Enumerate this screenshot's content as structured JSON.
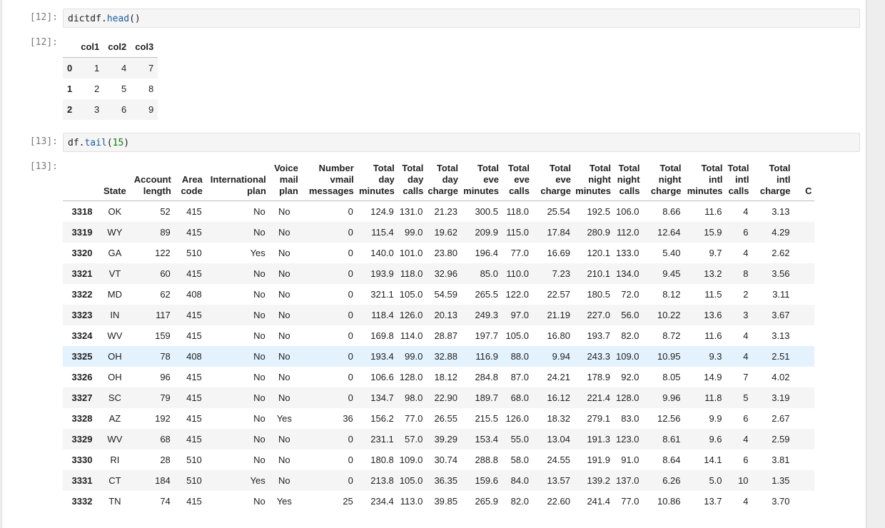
{
  "cell12": {
    "in_prompt": "[12]:",
    "out_prompt": "[12]:",
    "code": {
      "obj": "dictdf.",
      "fn": "head",
      "args": "()"
    },
    "columns": [
      "col1",
      "col2",
      "col3"
    ],
    "rows": [
      {
        "index": "0",
        "values": [
          "1",
          "4",
          "7"
        ]
      },
      {
        "index": "1",
        "values": [
          "2",
          "5",
          "8"
        ]
      },
      {
        "index": "2",
        "values": [
          "3",
          "6",
          "9"
        ]
      }
    ]
  },
  "cell13": {
    "in_prompt": "[13]:",
    "out_prompt": "[13]:",
    "code": {
      "obj": "df.",
      "fn": "tail",
      "open": "(",
      "num": "15",
      "close": ")"
    },
    "columns": [
      [
        "State"
      ],
      [
        "Account",
        "length"
      ],
      [
        "Area",
        "code"
      ],
      [
        "International",
        "plan"
      ],
      [
        "Voice",
        "mail",
        "plan"
      ],
      [
        "Number",
        "vmail",
        "messages"
      ],
      [
        "Total",
        "day",
        "minutes"
      ],
      [
        "Total",
        "day",
        "calls"
      ],
      [
        "Total",
        "day",
        "charge"
      ],
      [
        "Total",
        "eve",
        "minutes"
      ],
      [
        "Total",
        "eve",
        "calls"
      ],
      [
        "Total",
        "eve",
        "charge"
      ],
      [
        "Total",
        "night",
        "minutes"
      ],
      [
        "Total",
        "night",
        "calls"
      ],
      [
        "Total",
        "night",
        "charge"
      ],
      [
        "Total",
        "intl",
        "minutes"
      ],
      [
        "Total",
        "intl",
        "calls"
      ],
      [
        "Total",
        "intl",
        "charge"
      ],
      [
        "C"
      ]
    ],
    "highlighted_row": "3325",
    "rows": [
      {
        "index": "3318",
        "values": [
          "OK",
          "52",
          "415",
          "No",
          "No",
          "0",
          "124.9",
          "131.0",
          "21.23",
          "300.5",
          "118.0",
          "25.54",
          "192.5",
          "106.0",
          "8.66",
          "11.6",
          "4",
          "3.13",
          ""
        ]
      },
      {
        "index": "3319",
        "values": [
          "WY",
          "89",
          "415",
          "No",
          "No",
          "0",
          "115.4",
          "99.0",
          "19.62",
          "209.9",
          "115.0",
          "17.84",
          "280.9",
          "112.0",
          "12.64",
          "15.9",
          "6",
          "4.29",
          ""
        ]
      },
      {
        "index": "3320",
        "values": [
          "GA",
          "122",
          "510",
          "Yes",
          "No",
          "0",
          "140.0",
          "101.0",
          "23.80",
          "196.4",
          "77.0",
          "16.69",
          "120.1",
          "133.0",
          "5.40",
          "9.7",
          "4",
          "2.62",
          ""
        ]
      },
      {
        "index": "3321",
        "values": [
          "VT",
          "60",
          "415",
          "No",
          "No",
          "0",
          "193.9",
          "118.0",
          "32.96",
          "85.0",
          "110.0",
          "7.23",
          "210.1",
          "134.0",
          "9.45",
          "13.2",
          "8",
          "3.56",
          ""
        ]
      },
      {
        "index": "3322",
        "values": [
          "MD",
          "62",
          "408",
          "No",
          "No",
          "0",
          "321.1",
          "105.0",
          "54.59",
          "265.5",
          "122.0",
          "22.57",
          "180.5",
          "72.0",
          "8.12",
          "11.5",
          "2",
          "3.11",
          ""
        ]
      },
      {
        "index": "3323",
        "values": [
          "IN",
          "117",
          "415",
          "No",
          "No",
          "0",
          "118.4",
          "126.0",
          "20.13",
          "249.3",
          "97.0",
          "21.19",
          "227.0",
          "56.0",
          "10.22",
          "13.6",
          "3",
          "3.67",
          ""
        ]
      },
      {
        "index": "3324",
        "values": [
          "WV",
          "159",
          "415",
          "No",
          "No",
          "0",
          "169.8",
          "114.0",
          "28.87",
          "197.7",
          "105.0",
          "16.80",
          "193.7",
          "82.0",
          "8.72",
          "11.6",
          "4",
          "3.13",
          ""
        ]
      },
      {
        "index": "3325",
        "values": [
          "OH",
          "78",
          "408",
          "No",
          "No",
          "0",
          "193.4",
          "99.0",
          "32.88",
          "116.9",
          "88.0",
          "9.94",
          "243.3",
          "109.0",
          "10.95",
          "9.3",
          "4",
          "2.51",
          ""
        ]
      },
      {
        "index": "3326",
        "values": [
          "OH",
          "96",
          "415",
          "No",
          "No",
          "0",
          "106.6",
          "128.0",
          "18.12",
          "284.8",
          "87.0",
          "24.21",
          "178.9",
          "92.0",
          "8.05",
          "14.9",
          "7",
          "4.02",
          ""
        ]
      },
      {
        "index": "3327",
        "values": [
          "SC",
          "79",
          "415",
          "No",
          "No",
          "0",
          "134.7",
          "98.0",
          "22.90",
          "189.7",
          "68.0",
          "16.12",
          "221.4",
          "128.0",
          "9.96",
          "11.8",
          "5",
          "3.19",
          ""
        ]
      },
      {
        "index": "3328",
        "values": [
          "AZ",
          "192",
          "415",
          "No",
          "Yes",
          "36",
          "156.2",
          "77.0",
          "26.55",
          "215.5",
          "126.0",
          "18.32",
          "279.1",
          "83.0",
          "12.56",
          "9.9",
          "6",
          "2.67",
          ""
        ]
      },
      {
        "index": "3329",
        "values": [
          "WV",
          "68",
          "415",
          "No",
          "No",
          "0",
          "231.1",
          "57.0",
          "39.29",
          "153.4",
          "55.0",
          "13.04",
          "191.3",
          "123.0",
          "8.61",
          "9.6",
          "4",
          "2.59",
          ""
        ]
      },
      {
        "index": "3330",
        "values": [
          "RI",
          "28",
          "510",
          "No",
          "No",
          "0",
          "180.8",
          "109.0",
          "30.74",
          "288.8",
          "58.0",
          "24.55",
          "191.9",
          "91.0",
          "8.64",
          "14.1",
          "6",
          "3.81",
          ""
        ]
      },
      {
        "index": "3331",
        "values": [
          "CT",
          "184",
          "510",
          "Yes",
          "No",
          "0",
          "213.8",
          "105.0",
          "36.35",
          "159.6",
          "84.0",
          "13.57",
          "139.2",
          "137.0",
          "6.26",
          "5.0",
          "10",
          "1.35",
          ""
        ]
      },
      {
        "index": "3332",
        "values": [
          "TN",
          "74",
          "415",
          "No",
          "Yes",
          "25",
          "234.4",
          "113.0",
          "39.85",
          "265.9",
          "82.0",
          "22.60",
          "241.4",
          "77.0",
          "10.86",
          "13.7",
          "4",
          "3.70",
          ""
        ]
      }
    ]
  }
}
